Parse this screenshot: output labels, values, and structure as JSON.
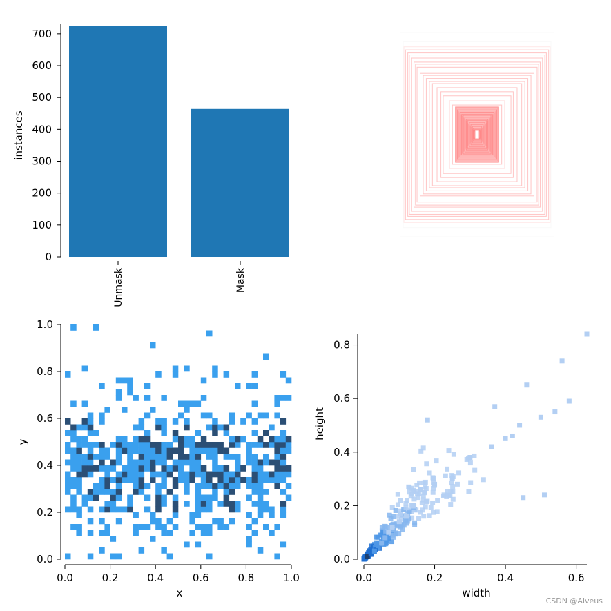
{
  "watermark": "CSDN @Alveus",
  "colors": {
    "bar": "#1f77b4",
    "box": "#ff3b3b",
    "hist_light": "#3aa0ee",
    "hist_dark": "#2b4f75",
    "hist2d_base": "#2b7ce0",
    "axis": "#000000",
    "background": "#ffffff"
  },
  "chart_data": [
    {
      "type": "bar",
      "categories": [
        "Unmask",
        "Mask"
      ],
      "values": [
        724,
        464
      ],
      "ylabel": "instances",
      "ylim": [
        0,
        730
      ],
      "yticks": [
        "0",
        "100",
        "200",
        "300",
        "400",
        "500",
        "600",
        "700"
      ]
    },
    {
      "type": "box_overlay",
      "description_none": "",
      "boxes_wh": [
        [
          1.0,
          1.0
        ],
        [
          0.96,
          0.91
        ],
        [
          0.95,
          0.86
        ],
        [
          0.93,
          0.83
        ],
        [
          0.9,
          0.8
        ],
        [
          0.88,
          0.78
        ],
        [
          0.85,
          0.75
        ],
        [
          0.82,
          0.71
        ],
        [
          0.8,
          0.69
        ],
        [
          0.78,
          0.66
        ],
        [
          0.74,
          0.6
        ],
        [
          0.7,
          0.58
        ],
        [
          0.66,
          0.55
        ],
        [
          0.62,
          0.52
        ],
        [
          0.58,
          0.5
        ],
        [
          0.52,
          0.46
        ],
        [
          0.47,
          0.42
        ],
        [
          0.44,
          0.38
        ],
        [
          0.36,
          0.33
        ],
        [
          0.32,
          0.29
        ],
        [
          0.28,
          0.27
        ],
        [
          0.25,
          0.24
        ],
        [
          0.22,
          0.22
        ],
        [
          0.2,
          0.2
        ],
        [
          0.18,
          0.19
        ],
        [
          0.16,
          0.17
        ],
        [
          0.14,
          0.15
        ],
        [
          0.12,
          0.14
        ],
        [
          0.1,
          0.12
        ],
        [
          0.08,
          0.1
        ],
        [
          0.06,
          0.08
        ],
        [
          0.05,
          0.06
        ],
        [
          0.04,
          0.05
        ],
        [
          0.03,
          0.04
        ],
        [
          0.02,
          0.03
        ]
      ]
    },
    {
      "type": "heatmap",
      "xlabel": "x",
      "ylabel": "y",
      "xlim": [
        0,
        1
      ],
      "ylim": [
        0,
        1
      ],
      "xticks": [
        "0.0",
        "0.2",
        "0.4",
        "0.6",
        "0.8",
        "1.0"
      ],
      "yticks": [
        "0.0",
        "0.2",
        "0.4",
        "0.6",
        "0.8",
        "1.0"
      ],
      "bins": 40,
      "density_by_y": [
        {
          "y": 0.05,
          "fill": 0.1
        },
        {
          "y": 0.15,
          "fill": 0.3
        },
        {
          "y": 0.25,
          "fill": 0.55
        },
        {
          "y": 0.35,
          "fill": 0.75
        },
        {
          "y": 0.45,
          "fill": 0.72
        },
        {
          "y": 0.55,
          "fill": 0.45
        },
        {
          "y": 0.65,
          "fill": 0.22
        },
        {
          "y": 0.75,
          "fill": 0.12
        },
        {
          "y": 0.85,
          "fill": 0.05
        },
        {
          "y": 0.95,
          "fill": 0.01
        }
      ]
    },
    {
      "type": "heatmap",
      "xlabel": "width",
      "ylabel": "height",
      "xlim": [
        0,
        0.63
      ],
      "ylim": [
        0,
        0.84
      ],
      "xticks": [
        "0.0",
        "0.2",
        "0.4",
        "0.6"
      ],
      "yticks": [
        "0.0",
        "0.2",
        "0.4",
        "0.6",
        "0.8"
      ],
      "points": [
        [
          0.01,
          0.01,
          5
        ],
        [
          0.02,
          0.02,
          4
        ],
        [
          0.03,
          0.03,
          3
        ],
        [
          0.04,
          0.05,
          3
        ],
        [
          0.05,
          0.06,
          2
        ],
        [
          0.06,
          0.08,
          2
        ],
        [
          0.07,
          0.1,
          1
        ],
        [
          0.08,
          0.12,
          1
        ],
        [
          0.1,
          0.14,
          1
        ],
        [
          0.12,
          0.16,
          1
        ],
        [
          0.14,
          0.2,
          1
        ],
        [
          0.16,
          0.26,
          1
        ],
        [
          0.2,
          0.28,
          1
        ],
        [
          0.25,
          0.3,
          1
        ],
        [
          0.3,
          0.38,
          1
        ],
        [
          0.36,
          0.42,
          1
        ],
        [
          0.4,
          0.45,
          1
        ],
        [
          0.42,
          0.46,
          1
        ],
        [
          0.44,
          0.5,
          1
        ],
        [
          0.46,
          0.65,
          1
        ],
        [
          0.5,
          0.53,
          1
        ],
        [
          0.54,
          0.55,
          1
        ],
        [
          0.56,
          0.74,
          1
        ],
        [
          0.58,
          0.59,
          1
        ],
        [
          0.63,
          0.84,
          1
        ],
        [
          0.37,
          0.57,
          1
        ],
        [
          0.18,
          0.52,
          1
        ],
        [
          0.51,
          0.24,
          1
        ],
        [
          0.45,
          0.23,
          1
        ]
      ]
    }
  ]
}
